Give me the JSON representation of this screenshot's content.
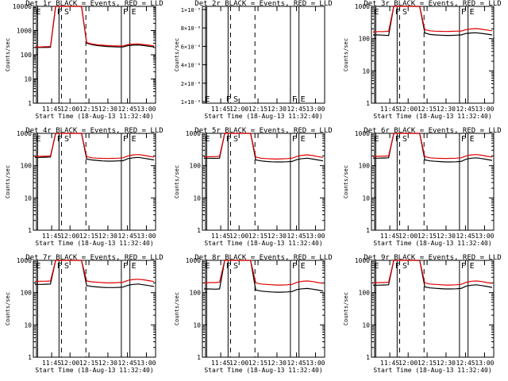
{
  "figure": {
    "x_tick_labels": [
      "11:45",
      "12:00",
      "12:15",
      "12:30",
      "12:45",
      "13:00"
    ],
    "x_axis_label": "Start Time (18-Aug-13 11:32:40)",
    "y_axis_label": "Counts/sec",
    "series_colors": {
      "events": "#000000",
      "lld": "#e00000"
    }
  },
  "chart_data": [
    {
      "type": "line",
      "title": "Det 1r BLACK = Events, RED = LLD",
      "ylabel": "Counts/sec",
      "xlabel": "Start Time (18-Aug-13 11:32:40)",
      "y_scale": "log",
      "ylim": [
        1,
        10000
      ],
      "xlim": [
        "11:32:40",
        "13:10:00"
      ],
      "y_tick_labels": [
        "1",
        "10",
        "100",
        "1000",
        "10000"
      ],
      "x_tick_labels": [
        "11:45",
        "12:00",
        "12:15",
        "12:30",
        "12:45",
        "13:00"
      ],
      "marker_labels": [
        "E",
        "F",
        "S",
        "F",
        "E"
      ],
      "series": [
        {
          "name": "Events",
          "color": "#000000",
          "values": [
            200,
            200,
            200,
            205,
            10000,
            10000,
            10000,
            10000,
            10000,
            10000,
            300,
            260,
            240,
            230,
            220,
            215,
            210,
            210,
            240,
            250,
            255,
            240,
            225,
            210
          ]
        },
        {
          "name": "LLD",
          "color": "#e00000",
          "values": [
            210,
            210,
            215,
            220,
            10000,
            10000,
            10000,
            10000,
            10000,
            10000,
            320,
            280,
            260,
            250,
            240,
            235,
            230,
            230,
            265,
            275,
            280,
            265,
            250,
            230
          ]
        }
      ]
    },
    {
      "type": "line",
      "title": "Det 2r BLACK = Events, RED = LLD",
      "ylabel": "Counts/sec",
      "xlabel": "Start Time (18-Aug-13 11:32:40)",
      "y_scale": "log",
      "ylim": [
        1e-06,
        1e-05
      ],
      "xlim": [
        "11:32:40",
        "13:10:00"
      ],
      "y_tick_labels": [
        "1×10⁻⁵",
        "8×10⁻⁶",
        "6×10⁻⁶",
        "4×10⁻⁶",
        "2×10⁻⁶",
        "1×10⁻⁶"
      ],
      "x_tick_labels": [
        "11:45",
        "12:00",
        "12:15",
        "12:30",
        "12:45",
        "13:00"
      ],
      "marker_labels": [
        "E",
        "F",
        "S",
        "F",
        "E"
      ],
      "series": []
    },
    {
      "type": "line",
      "title": "Det 3r BLACK = Events, RED = LLD",
      "ylabel": "Counts/sec",
      "xlabel": "Start Time (18-Aug-13 11:32:40)",
      "y_scale": "log",
      "ylim": [
        1,
        1000
      ],
      "xlim": [
        "11:32:40",
        "13:10:00"
      ],
      "y_tick_labels": [
        "1",
        "10",
        "100",
        "1000"
      ],
      "x_tick_labels": [
        "11:45",
        "12:00",
        "12:15",
        "12:30",
        "12:45",
        "13:00"
      ],
      "marker_labels": [
        "E",
        "F",
        "S",
        "F",
        "E"
      ],
      "series": [
        {
          "name": "Events",
          "color": "#000000",
          "values": [
            130,
            130,
            128,
            125,
            1000,
            1000,
            1000,
            1000,
            1000,
            1000,
            150,
            135,
            130,
            128,
            126,
            126,
            128,
            130,
            145,
            150,
            152,
            145,
            138,
            130
          ]
        },
        {
          "name": "LLD",
          "color": "#e00000",
          "values": [
            160,
            165,
            165,
            170,
            1000,
            1000,
            1000,
            1000,
            1000,
            1000,
            190,
            175,
            170,
            168,
            166,
            168,
            170,
            172,
            190,
            200,
            205,
            195,
            185,
            175
          ]
        }
      ]
    },
    {
      "type": "line",
      "title": "Det 4r BLACK = Events, RED = LLD",
      "ylabel": "Counts/sec",
      "xlabel": "Start Time (18-Aug-13 11:32:40)",
      "y_scale": "log",
      "ylim": [
        1,
        1000
      ],
      "xlim": [
        "11:32:40",
        "13:10:00"
      ],
      "y_tick_labels": [
        "1",
        "10",
        "100",
        "1000"
      ],
      "x_tick_labels": [
        "11:45",
        "12:00",
        "12:15",
        "12:30",
        "12:45",
        "13:00"
      ],
      "marker_labels": [
        "E",
        "F",
        "S",
        "F",
        "E"
      ],
      "series": [
        {
          "name": "Events",
          "color": "#000000",
          "values": [
            180,
            180,
            182,
            185,
            1000,
            1000,
            1000,
            1000,
            1000,
            1000,
            160,
            150,
            145,
            140,
            138,
            138,
            140,
            142,
            165,
            175,
            180,
            170,
            160,
            150
          ]
        },
        {
          "name": "LLD",
          "color": "#e00000",
          "values": [
            190,
            195,
            195,
            200,
            1000,
            1000,
            1000,
            1000,
            1000,
            1000,
            190,
            175,
            170,
            168,
            166,
            168,
            170,
            175,
            200,
            215,
            220,
            210,
            195,
            185
          ]
        }
      ]
    },
    {
      "type": "line",
      "title": "Det 5r BLACK = Events, RED = LLD",
      "ylabel": "Counts/sec",
      "xlabel": "Start Time (18-Aug-13 11:32:40)",
      "y_scale": "log",
      "ylim": [
        1,
        1000
      ],
      "xlim": [
        "11:32:40",
        "13:10:00"
      ],
      "y_tick_labels": [
        "1",
        "10",
        "100",
        "1000"
      ],
      "x_tick_labels": [
        "11:45",
        "12:00",
        "12:15",
        "12:30",
        "12:45",
        "13:00"
      ],
      "marker_labels": [
        "E",
        "F",
        "S",
        "F",
        "E"
      ],
      "series": [
        {
          "name": "Events",
          "color": "#000000",
          "values": [
            170,
            170,
            168,
            170,
            1000,
            1000,
            1000,
            1000,
            1000,
            1000,
            150,
            140,
            135,
            132,
            130,
            130,
            132,
            135,
            155,
            165,
            170,
            160,
            150,
            140
          ]
        },
        {
          "name": "LLD",
          "color": "#e00000",
          "values": [
            185,
            190,
            190,
            195,
            1000,
            1000,
            1000,
            1000,
            1000,
            1000,
            185,
            170,
            165,
            162,
            160,
            162,
            165,
            170,
            195,
            210,
            215,
            205,
            190,
            180
          ]
        }
      ]
    },
    {
      "type": "line",
      "title": "Det 6r BLACK = Events, RED = LLD",
      "ylabel": "Counts/sec",
      "xlabel": "Start Time (18-Aug-13 11:32:40)",
      "y_scale": "log",
      "ylim": [
        1,
        1000
      ],
      "xlim": [
        "11:32:40",
        "13:10:00"
      ],
      "y_tick_labels": [
        "1",
        "10",
        "100",
        "1000"
      ],
      "x_tick_labels": [
        "11:45",
        "12:00",
        "12:15",
        "12:30",
        "12:45",
        "13:00"
      ],
      "marker_labels": [
        "E",
        "F",
        "S",
        "F",
        "E"
      ],
      "series": [
        {
          "name": "Events",
          "color": "#000000",
          "values": [
            170,
            170,
            172,
            175,
            1000,
            1000,
            1000,
            1000,
            1000,
            1000,
            150,
            140,
            136,
            133,
            130,
            130,
            132,
            135,
            160,
            170,
            175,
            165,
            155,
            145
          ]
        },
        {
          "name": "LLD",
          "color": "#e00000",
          "values": [
            190,
            195,
            195,
            200,
            1000,
            1000,
            1000,
            1000,
            1000,
            1000,
            190,
            175,
            170,
            168,
            166,
            168,
            170,
            175,
            200,
            215,
            220,
            210,
            195,
            185
          ]
        }
      ]
    },
    {
      "type": "line",
      "title": "Det 7r BLACK = Events, RED = LLD",
      "ylabel": "Counts/sec",
      "xlabel": "Start Time (18-Aug-13 11:32:40)",
      "y_scale": "log",
      "ylim": [
        1,
        1000
      ],
      "xlim": [
        "11:32:40",
        "13:10:00"
      ],
      "y_tick_labels": [
        "1",
        "10",
        "100",
        "1000"
      ],
      "x_tick_labels": [
        "11:45",
        "12:00",
        "12:15",
        "12:30",
        "12:45",
        "13:00"
      ],
      "marker_labels": [
        "E",
        "F",
        "S",
        "F",
        "E"
      ],
      "series": [
        {
          "name": "Events",
          "color": "#000000",
          "values": [
            180,
            180,
            182,
            185,
            1000,
            1000,
            1000,
            1000,
            1000,
            1000,
            165,
            155,
            150,
            146,
            143,
            143,
            145,
            148,
            170,
            180,
            185,
            175,
            165,
            155
          ]
        },
        {
          "name": "LLD",
          "color": "#e00000",
          "values": [
            220,
            225,
            225,
            230,
            1000,
            1000,
            1000,
            1000,
            1000,
            1000,
            230,
            215,
            210,
            205,
            200,
            200,
            205,
            210,
            240,
            255,
            260,
            250,
            235,
            220
          ]
        }
      ]
    },
    {
      "type": "line",
      "title": "Det 8r BLACK = Events, RED = LLD",
      "ylabel": "Counts/sec",
      "xlabel": "Start Time (18-Aug-13 11:32:40)",
      "y_scale": "log",
      "ylim": [
        1,
        1000
      ],
      "xlim": [
        "11:32:40",
        "13:10:00"
      ],
      "y_tick_labels": [
        "1",
        "10",
        "100",
        "1000"
      ],
      "x_tick_labels": [
        "11:45",
        "12:00",
        "12:15",
        "12:30",
        "12:45",
        "13:00"
      ],
      "marker_labels": [
        "E",
        "F",
        "S",
        "F",
        "E"
      ],
      "series": [
        {
          "name": "Events",
          "color": "#000000",
          "values": [
            130,
            130,
            128,
            130,
            1000,
            1000,
            1000,
            1000,
            1000,
            1000,
            120,
            112,
            108,
            105,
            103,
            103,
            105,
            108,
            125,
            132,
            135,
            128,
            120,
            112
          ]
        },
        {
          "name": "LLD",
          "color": "#e00000",
          "values": [
            200,
            205,
            205,
            210,
            1000,
            1000,
            1000,
            1000,
            1000,
            1000,
            200,
            185,
            180,
            176,
            172,
            172,
            175,
            180,
            210,
            225,
            230,
            220,
            205,
            195
          ]
        }
      ]
    },
    {
      "type": "line",
      "title": "Det 9r BLACK = Events, RED = LLD",
      "ylabel": "Counts/sec",
      "xlabel": "Start Time (18-Aug-13 11:32:40)",
      "y_scale": "log",
      "ylim": [
        1,
        1000
      ],
      "xlim": [
        "11:32:40",
        "13:10:00"
      ],
      "y_tick_labels": [
        "1",
        "10",
        "100",
        "1000"
      ],
      "x_tick_labels": [
        "11:45",
        "12:00",
        "12:15",
        "12:30",
        "12:45",
        "13:00"
      ],
      "marker_labels": [
        "E",
        "F",
        "S",
        "F",
        "E"
      ],
      "series": [
        {
          "name": "Events",
          "color": "#000000",
          "values": [
            170,
            170,
            172,
            175,
            1000,
            1000,
            1000,
            1000,
            1000,
            1000,
            150,
            140,
            136,
            133,
            130,
            130,
            132,
            135,
            160,
            170,
            175,
            165,
            155,
            145
          ]
        },
        {
          "name": "LLD",
          "color": "#e00000",
          "values": [
            200,
            205,
            205,
            210,
            1000,
            1000,
            1000,
            1000,
            1000,
            1000,
            200,
            185,
            180,
            176,
            172,
            172,
            175,
            180,
            210,
            225,
            230,
            220,
            205,
            195
          ]
        }
      ]
    }
  ]
}
